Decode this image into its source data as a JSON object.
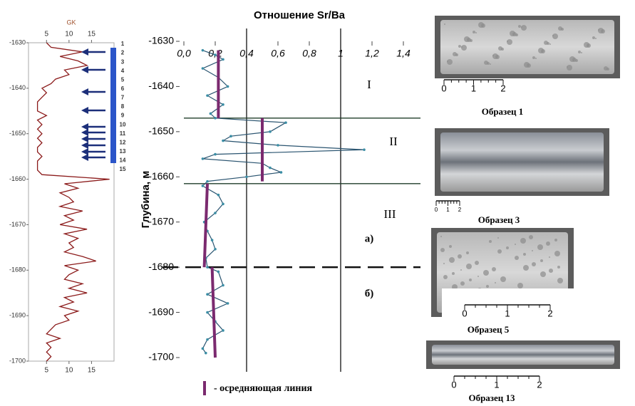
{
  "chart_data": [
    {
      "type": "line",
      "title": "GK",
      "color": "#8b1a1a",
      "xlim": [
        1,
        20
      ],
      "xticks": [
        5,
        10,
        15
      ],
      "ylim": [
        -1700,
        -1630
      ],
      "yticks": [
        -1630,
        -1640,
        -1650,
        -1660,
        -1670,
        -1680,
        -1690,
        -1700
      ],
      "depth": [
        -1630,
        -1631,
        -1632,
        -1633,
        -1634,
        -1635,
        -1636,
        -1637,
        -1638,
        -1639,
        -1640,
        -1641,
        -1642,
        -1643,
        -1644,
        -1645,
        -1646,
        -1647,
        -1648,
        -1649,
        -1650,
        -1651,
        -1652,
        -1653,
        -1654,
        -1655,
        -1656,
        -1657,
        -1658,
        -1659,
        -1660,
        -1661,
        -1662,
        -1663,
        -1664,
        -1665,
        -1666,
        -1667,
        -1668,
        -1669,
        -1670,
        -1671,
        -1672,
        -1673,
        -1674,
        -1675,
        -1676,
        -1677,
        -1678,
        -1679,
        -1680,
        -1681,
        -1682,
        -1683,
        -1684,
        -1685,
        -1686,
        -1687,
        -1688,
        -1689,
        -1690,
        -1691,
        -1692,
        -1693,
        -1694,
        -1695,
        -1696,
        -1697,
        -1698,
        -1699,
        -1700
      ],
      "values": [
        5,
        6,
        13,
        8,
        12,
        14,
        9,
        10,
        7,
        6,
        4,
        5,
        4,
        3,
        3,
        3,
        5,
        3,
        4,
        3,
        4,
        3,
        4,
        3,
        3,
        4,
        3,
        3,
        3,
        4,
        19,
        9,
        12,
        8,
        10,
        11,
        8,
        13,
        9,
        11,
        8,
        14,
        9,
        12,
        10,
        11,
        9,
        13,
        16,
        9,
        12,
        10,
        9,
        13,
        10,
        14,
        9,
        11,
        8,
        12,
        9,
        10,
        7,
        6,
        5,
        8,
        5,
        6,
        5,
        6,
        5
      ],
      "sample_numbers": [
        "1",
        "2",
        "3",
        "4",
        "5",
        "6",
        "7",
        "8",
        "9",
        "10",
        "11",
        "12",
        "13",
        "14",
        "15"
      ]
    },
    {
      "type": "line",
      "title": "Отношение Sr/Ba",
      "y_label": "Глубина, м",
      "color": "#2a5470",
      "xlim": [
        0,
        1.5
      ],
      "xticks": [
        {
          "value": 0,
          "label": "0,0"
        },
        {
          "value": 0.2,
          "label": "0,2"
        },
        {
          "value": 0.4,
          "label": "0,4"
        },
        {
          "value": 0.6,
          "label": "0,6"
        },
        {
          "value": 0.8,
          "label": "0,8"
        },
        1,
        {
          "value": 1.2,
          "label": "1,2"
        },
        {
          "value": 1.4,
          "label": "1,4"
        }
      ],
      "xgrid": [
        0.4,
        1
      ],
      "ylim": [
        -1700,
        -1630
      ],
      "yticks": [
        -1630,
        -1640,
        -1650,
        -1660,
        -1670,
        -1680,
        -1690,
        -1700
      ],
      "depth": [
        -1632,
        -1633,
        -1634,
        -1636,
        -1638,
        -1640,
        -1642,
        -1644,
        -1646,
        -1647,
        -1648,
        -1650,
        -1651,
        -1652,
        -1653,
        -1654,
        -1655,
        -1656,
        -1657,
        -1658,
        -1659,
        -1660,
        -1661,
        -1662,
        -1664,
        -1666,
        -1668,
        -1670,
        -1672,
        -1674,
        -1676,
        -1678,
        -1680,
        -1681,
        -1684,
        -1686,
        -1688,
        -1690,
        -1692,
        -1694,
        -1696,
        -1698,
        -1699
      ],
      "values": [
        0.12,
        0.2,
        0.25,
        0.12,
        0.22,
        0.28,
        0.15,
        0.25,
        0.17,
        0.2,
        0.65,
        0.55,
        0.3,
        0.25,
        0.6,
        1.15,
        0.2,
        0.12,
        0.5,
        0.55,
        0.62,
        0.4,
        0.15,
        0.12,
        0.22,
        0.25,
        0.2,
        0.13,
        0.15,
        0.18,
        0.2,
        0.14,
        0.15,
        0.22,
        0.25,
        0.15,
        0.28,
        0.15,
        0.2,
        0.25,
        0.15,
        0.12,
        0.14
      ],
      "zone_boundaries": [
        -1647,
        -1661.5,
        -1680
      ],
      "zone_labels": [
        "I",
        "II",
        "III",
        "а)",
        "б)"
      ],
      "averages": {
        "name": "- осредняющая линия",
        "color": "#7b2a6f",
        "segments": [
          {
            "depth": [
              -1632,
              -1647
            ],
            "values": [
              0.22,
              0.22
            ]
          },
          {
            "depth": [
              -1647,
              -1661
            ],
            "values": [
              0.5,
              0.5
            ]
          },
          {
            "depth": [
              -1661.5,
              -1680
            ],
            "values": [
              0.15,
              0.13
            ]
          },
          {
            "depth": [
              -1680,
              -1700
            ],
            "values": [
              0.18,
              0.2
            ]
          }
        ]
      }
    }
  ],
  "samples": [
    {
      "caption": "Образец 1",
      "scale": [
        "0",
        "1",
        "2"
      ]
    },
    {
      "caption": "Образец 3",
      "scale": [
        "0",
        "1",
        "2"
      ]
    },
    {
      "caption": "Образец 5",
      "scale": [
        "0",
        "1",
        "2"
      ]
    },
    {
      "caption": "Образец 13",
      "scale": [
        "0",
        "1",
        "2"
      ]
    }
  ]
}
